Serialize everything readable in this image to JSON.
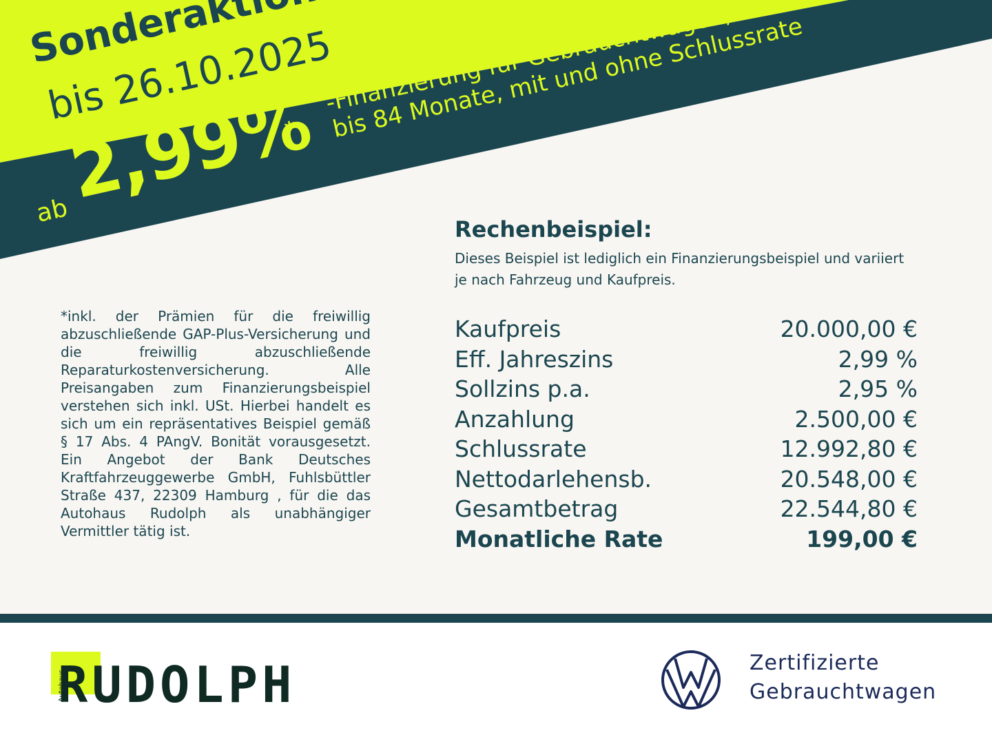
{
  "colors": {
    "lime": "#dcfa1e",
    "teal": "#1b4650",
    "background": "#f8f6f2",
    "vw_blue": "#1b2a5a"
  },
  "banner": {
    "title": "Sonderaktion",
    "date": "bis 26.10.2025",
    "prefix": "ab",
    "rate": "2,99%",
    "asterisk": "*",
    "line1": "-Finanzierung für Gebrauchtwagen,",
    "line2": "bis 84 Monate, mit und ohne Schlussrate"
  },
  "disclaimer": "*inkl. der Prämien für die freiwillig abzuschließende GAP-Plus-Versicherung und die freiwillig abzuschließende Reparaturkostenversicherung. Alle Preisangaben zum Finanzierungsbeispiel verstehen sich inkl. USt. Hierbei handelt es sich um ein repräsentatives Beispiel gemäß § 17 Abs. 4 PAngV. Bonität vorausgesetzt. Ein Angebot der Bank Deutsches Kraftfahrzeuggewerbe GmbH, Fuhlsbüttler Straße 437, 22309 Hamburg , für die das Autohaus Rudolph als unabhängiger Vermittler tätig ist.",
  "calc": {
    "title": "Rechenbeispiel:",
    "subtitle": "Dieses Beispiel ist lediglich ein Finanzierungsbeispiel und variiert je nach Fahrzeug und Kaufpreis.",
    "rows": [
      {
        "label": "Kaufpreis",
        "value": "20.000,00 €"
      },
      {
        "label": "Eff. Jahreszins",
        "value": "2,99 %"
      },
      {
        "label": "Sollzins p.a.",
        "value": "2,95 %"
      },
      {
        "label": "Anzahlung",
        "value": "2.500,00 €"
      },
      {
        "label": "Schlussrate",
        "value": "12.992,80 €"
      },
      {
        "label": "Nettodarlehensb.",
        "value": "20.548,00 €"
      },
      {
        "label": "Gesamtbetrag",
        "value": "22.544,80 €"
      },
      {
        "label": "Monatliche Rate",
        "value": "199,00 €"
      }
    ]
  },
  "footer": {
    "dealer_logo": "Autohaus RUDOLPH",
    "dealer_logo_small": "Autohaus",
    "dealer_logo_word": "RUDOLPH",
    "vw_icon": "vw-logo-icon",
    "vw_line1": "Zertifizierte",
    "vw_line2": "Gebrauchtwagen"
  }
}
